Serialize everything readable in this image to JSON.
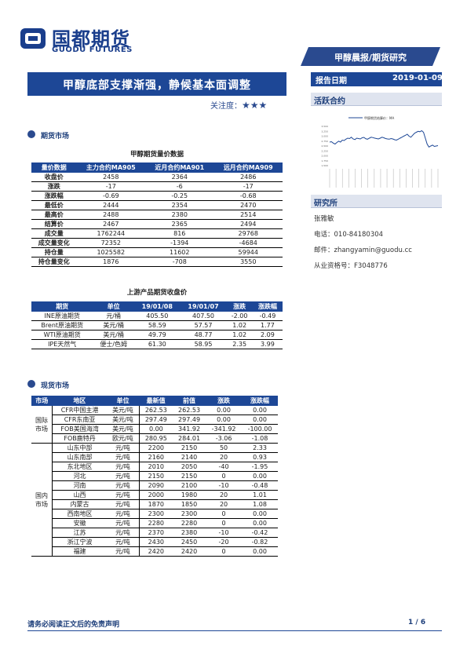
{
  "logo": {
    "cn": "国都期货",
    "en": "GUODU FUTURES"
  },
  "tag": "甲醇晨报/期货研究",
  "title": "甲醇底部支撑渐强，静候基本面调整",
  "attention": {
    "label": "关注度：",
    "stars": "★★★"
  },
  "report_date": {
    "label": "报告日期",
    "value": "2019-01-09"
  },
  "active_contract": {
    "label": "活跃合约"
  },
  "chart_data": {
    "type": "line",
    "title": "",
    "series": [
      {
        "name": "甲醇期货结算价：MA",
        "values": [
          2700,
          2720,
          2650,
          2600,
          2680,
          2750,
          2700,
          2800,
          2780,
          2850,
          2900,
          2880,
          2950,
          2860,
          2830,
          2900,
          2880,
          2860,
          2920,
          2940,
          2870,
          2850,
          2900,
          2950,
          2930,
          2900,
          2880,
          2860,
          2900,
          2950,
          2920,
          2880,
          2860,
          2850,
          2880,
          2860,
          2820,
          2800,
          2850,
          2900,
          2950,
          3000,
          3050,
          3100,
          3000,
          2950,
          3050,
          3150,
          3200,
          3250,
          3230,
          3280,
          3200,
          2900,
          2600,
          2450,
          2500,
          2550,
          2480,
          2500,
          2520
        ]
      }
    ],
    "ylim": [
      1500,
      3500
    ]
  },
  "institute": {
    "label": "研究所",
    "name": "张雅敏",
    "phone": "电话：010-84180304",
    "email": "邮件：zhangyamin@guodu.cc",
    "license": "从业资格号：F3048776"
  },
  "futures_section": "期货市场",
  "futures_table": {
    "title": "甲醇期货量价数据",
    "headers": [
      "量价数据",
      "主力合约MA905",
      "近月合约MA901",
      "远月合约MA909"
    ],
    "rows": [
      [
        "收盘价",
        "2458",
        "2364",
        "2486"
      ],
      [
        "涨跌",
        "-17",
        "-6",
        "-17"
      ],
      [
        "涨跌幅",
        "-0.69",
        "-0.25",
        "-0.68"
      ],
      [
        "最低价",
        "2444",
        "2354",
        "2470"
      ],
      [
        "最高价",
        "2488",
        "2380",
        "2514"
      ],
      [
        "结算价",
        "2467",
        "2365",
        "2494"
      ],
      [
        "成交量",
        "1762244",
        "816",
        "29768"
      ],
      [
        "成交量变化",
        "72352",
        "-1394",
        "-4684"
      ],
      [
        "持仓量",
        "1025582",
        "11602",
        "59944"
      ],
      [
        "持仓量变化",
        "1876",
        "-708",
        "3550"
      ]
    ]
  },
  "upstream_table": {
    "title": "上游产品期货收盘价",
    "headers": [
      "期货",
      "单位",
      "19/01/08",
      "19/01/07",
      "涨跌",
      "涨跌幅"
    ],
    "rows": [
      [
        "INE原油期货",
        "元/桶",
        "405.50",
        "407.50",
        "-2.00",
        "-0.49"
      ],
      [
        "Brent原油期货",
        "美元/桶",
        "58.59",
        "57.57",
        "1.02",
        "1.77"
      ],
      [
        "WTI原油期货",
        "美元/桶",
        "49.79",
        "48.77",
        "1.02",
        "2.09"
      ],
      [
        "IPE天然气",
        "便士/色姆",
        "61.30",
        "58.95",
        "2.35",
        "3.99"
      ]
    ]
  },
  "spot_section": "现货市场",
  "spot_table": {
    "headers": [
      "市场",
      "地区",
      "单位",
      "最新值",
      "前值",
      "涨跌",
      "涨跌幅"
    ],
    "groups": [
      {
        "market": "国际市场",
        "rows": [
          [
            "CFR中国主港",
            "美元/吨",
            "262.53",
            "262.53",
            "0.00",
            "0.00"
          ],
          [
            "CFR东南亚",
            "美元/吨",
            "297.49",
            "297.49",
            "0.00",
            "0.00"
          ],
          [
            "FOB美国海湾",
            "美元/吨",
            "0.00",
            "341.92",
            "-341.92",
            "-100.00"
          ],
          [
            "FOB鹿特丹",
            "欧元/吨",
            "280.95",
            "284.01",
            "-3.06",
            "-1.08"
          ]
        ]
      },
      {
        "market": "国内市场",
        "rows": [
          [
            "山东中部",
            "元/吨",
            "2200",
            "2150",
            "50",
            "2.33"
          ],
          [
            "山东南部",
            "元/吨",
            "2160",
            "2140",
            "20",
            "0.93"
          ],
          [
            "东北地区",
            "元/吨",
            "2010",
            "2050",
            "-40",
            "-1.95"
          ],
          [
            "河北",
            "元/吨",
            "2150",
            "2150",
            "0",
            "0.00"
          ],
          [
            "河南",
            "元/吨",
            "2090",
            "2100",
            "-10",
            "-0.48"
          ],
          [
            "山西",
            "元/吨",
            "2000",
            "1980",
            "20",
            "1.01"
          ],
          [
            "内蒙古",
            "元/吨",
            "1870",
            "1850",
            "20",
            "1.08"
          ],
          [
            "西南地区",
            "元/吨",
            "2300",
            "2300",
            "0",
            "0.00"
          ],
          [
            "安徽",
            "元/吨",
            "2280",
            "2280",
            "0",
            "0.00"
          ],
          [
            "江苏",
            "元/吨",
            "2370",
            "2380",
            "-10",
            "-0.42"
          ],
          [
            "浙江宁波",
            "元/吨",
            "2430",
            "2450",
            "-20",
            "-0.82"
          ],
          [
            "福建",
            "元/吨",
            "2420",
            "2420",
            "0",
            "0.00"
          ]
        ]
      }
    ]
  },
  "footer": {
    "disclaimer": "请务必阅读正文后的免责声明",
    "page": "1 / 6"
  }
}
